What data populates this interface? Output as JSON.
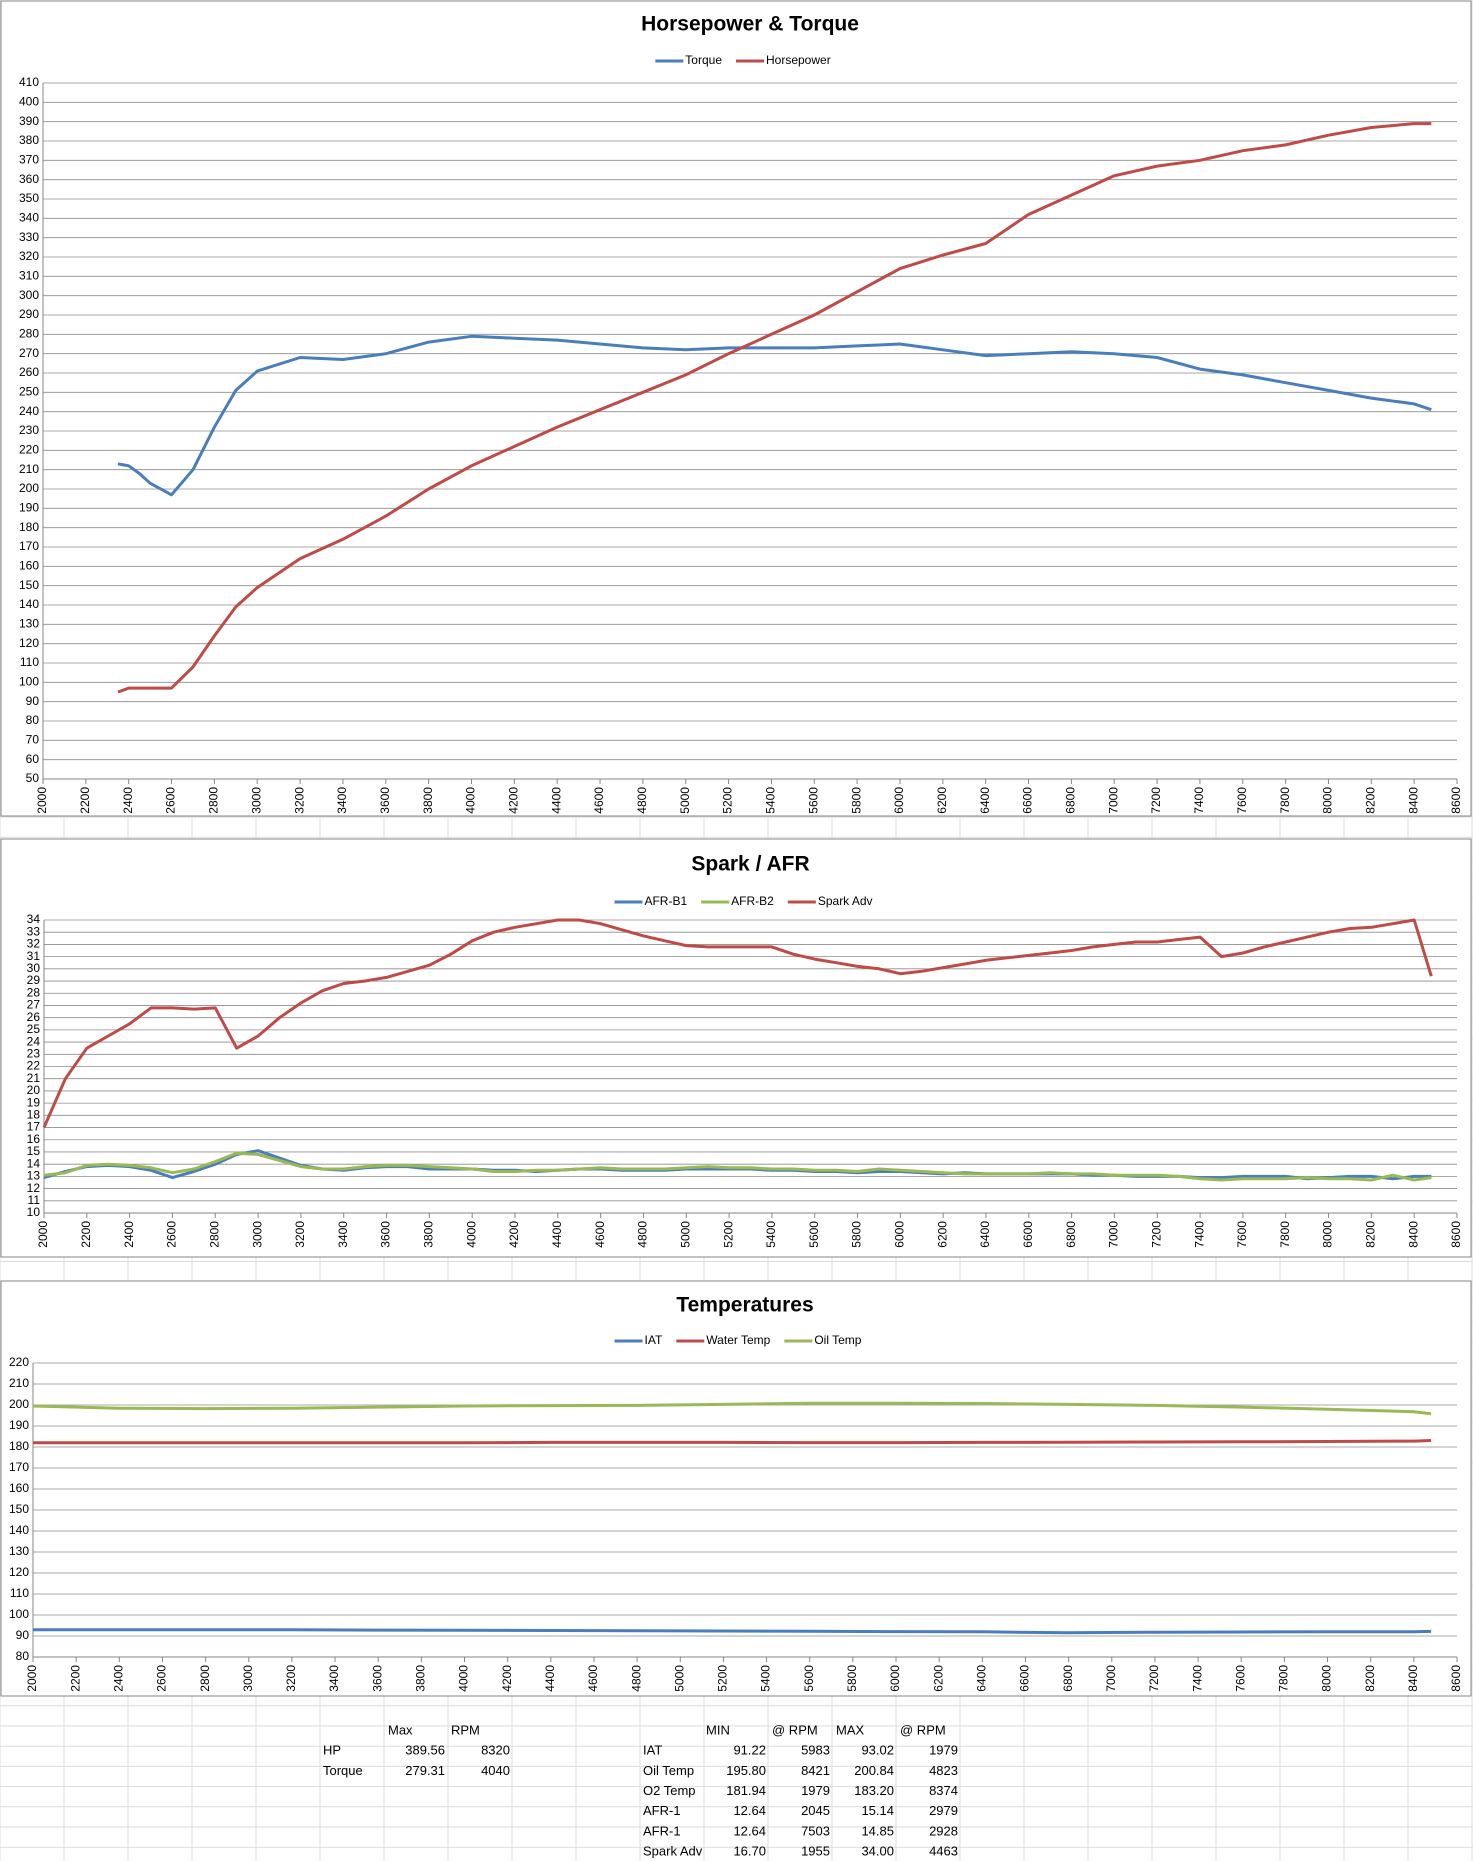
{
  "chart_data": [
    {
      "type": "line",
      "title": "Horsepower & Torque",
      "x": [
        2350,
        2400,
        2450,
        2500,
        2600,
        2700,
        2800,
        2900,
        3000,
        3200,
        3400,
        3600,
        3800,
        4000,
        4200,
        4400,
        4600,
        4800,
        5000,
        5200,
        5400,
        5600,
        5800,
        6000,
        6200,
        6400,
        6600,
        6800,
        7000,
        7200,
        7400,
        7600,
        7800,
        8000,
        8200,
        8400,
        8480
      ],
      "series": [
        {
          "name": "Torque",
          "color": "#4a7ebb",
          "values": [
            213,
            212,
            208,
            203,
            197,
            210,
            232,
            251,
            261,
            268,
            267,
            270,
            276,
            279,
            278,
            277,
            275,
            273,
            272,
            273,
            273,
            273,
            274,
            275,
            272,
            269,
            270,
            271,
            270,
            268,
            262,
            259,
            255,
            251,
            247,
            244,
            241
          ]
        },
        {
          "name": "Horsepower",
          "color": "#be4b48",
          "values": [
            95,
            97,
            97,
            97,
            97,
            108,
            124,
            139,
            149,
            164,
            174,
            186,
            200,
            212,
            222,
            232,
            241,
            250,
            259,
            270,
            280,
            290,
            302,
            314,
            321,
            327,
            342,
            352,
            362,
            367,
            370,
            375,
            378,
            383,
            387,
            389,
            389
          ]
        }
      ],
      "xlim": [
        2000,
        8600
      ],
      "xticks": [
        2000,
        2200,
        2400,
        2600,
        2800,
        3000,
        3200,
        3400,
        3600,
        3800,
        4000,
        4200,
        4400,
        4600,
        4800,
        5000,
        5200,
        5400,
        5600,
        5800,
        6000,
        6200,
        6400,
        6600,
        6800,
        7000,
        7200,
        7400,
        7600,
        7800,
        8000,
        8200,
        8400,
        8600
      ],
      "ylim": [
        50,
        410
      ],
      "yticks": [
        50,
        60,
        70,
        80,
        90,
        100,
        110,
        120,
        130,
        140,
        150,
        160,
        170,
        180,
        190,
        200,
        210,
        220,
        230,
        240,
        250,
        260,
        270,
        280,
        290,
        300,
        310,
        320,
        330,
        340,
        350,
        360,
        370,
        380,
        390,
        400,
        410
      ],
      "grid": true,
      "legend": "top"
    },
    {
      "type": "line",
      "title": "Spark / AFR",
      "x": [
        2000,
        2100,
        2200,
        2300,
        2400,
        2500,
        2600,
        2700,
        2800,
        2900,
        3000,
        3100,
        3200,
        3300,
        3400,
        3500,
        3600,
        3700,
        3800,
        3900,
        4000,
        4100,
        4200,
        4300,
        4400,
        4500,
        4600,
        4700,
        4800,
        4900,
        5000,
        5100,
        5200,
        5300,
        5400,
        5500,
        5600,
        5700,
        5800,
        5900,
        6000,
        6100,
        6200,
        6300,
        6400,
        6500,
        6600,
        6700,
        6800,
        6900,
        7000,
        7100,
        7200,
        7300,
        7400,
        7500,
        7600,
        7700,
        7800,
        7900,
        8000,
        8100,
        8200,
        8300,
        8400,
        8480
      ],
      "series": [
        {
          "name": "AFR-B1",
          "color": "#4a7ebb",
          "values": [
            12.9,
            13.4,
            13.8,
            13.9,
            13.8,
            13.5,
            12.9,
            13.4,
            14,
            14.8,
            15.1,
            14.5,
            13.9,
            13.6,
            13.5,
            13.7,
            13.8,
            13.8,
            13.6,
            13.6,
            13.6,
            13.5,
            13.5,
            13.4,
            13.5,
            13.6,
            13.6,
            13.5,
            13.5,
            13.5,
            13.6,
            13.6,
            13.6,
            13.6,
            13.5,
            13.5,
            13.4,
            13.4,
            13.3,
            13.4,
            13.4,
            13.3,
            13.2,
            13.3,
            13.2,
            13.2,
            13.2,
            13.2,
            13.2,
            13.1,
            13.1,
            13,
            13,
            13,
            12.9,
            12.9,
            13,
            13,
            13,
            12.8,
            12.9,
            13,
            13,
            12.8,
            13,
            13
          ]
        },
        {
          "name": "AFR-B2",
          "color": "#98b954",
          "values": [
            13.1,
            13.3,
            13.9,
            14,
            13.9,
            13.7,
            13.3,
            13.6,
            14.2,
            14.9,
            14.8,
            14.3,
            13.8,
            13.6,
            13.6,
            13.8,
            13.9,
            13.9,
            13.8,
            13.7,
            13.6,
            13.4,
            13.4,
            13.5,
            13.5,
            13.6,
            13.7,
            13.6,
            13.6,
            13.6,
            13.7,
            13.8,
            13.7,
            13.7,
            13.6,
            13.6,
            13.5,
            13.5,
            13.4,
            13.6,
            13.5,
            13.4,
            13.3,
            13.2,
            13.2,
            13.2,
            13.2,
            13.3,
            13.2,
            13.2,
            13.1,
            13.1,
            13.1,
            13,
            12.8,
            12.7,
            12.8,
            12.8,
            12.8,
            12.9,
            12.8,
            12.8,
            12.7,
            13.1,
            12.7,
            12.9
          ]
        },
        {
          "name": "Spark Adv",
          "color": "#be4b48",
          "values": [
            17,
            21,
            23.5,
            24.5,
            25.5,
            26.8,
            26.8,
            26.7,
            26.8,
            23.5,
            24.5,
            26,
            27.2,
            28.2,
            28.8,
            29,
            29.3,
            29.8,
            30.3,
            31.2,
            32.3,
            33,
            33.4,
            33.7,
            34,
            34,
            33.7,
            33.2,
            32.7,
            32.3,
            31.9,
            31.8,
            31.8,
            31.8,
            31.8,
            31.2,
            30.8,
            30.5,
            30.2,
            30,
            29.6,
            29.8,
            30.1,
            30.4,
            30.7,
            30.9,
            31.1,
            31.3,
            31.5,
            31.8,
            32,
            32.2,
            32.2,
            32.4,
            32.6,
            31,
            31.3,
            31.8,
            32.2,
            32.6,
            33,
            33.3,
            33.4,
            33.7,
            34,
            29.4
          ]
        }
      ],
      "xlim": [
        2000,
        8600
      ],
      "xticks": [
        2000,
        2200,
        2400,
        2600,
        2800,
        3000,
        3200,
        3400,
        3600,
        3800,
        4000,
        4200,
        4400,
        4600,
        4800,
        5000,
        5200,
        5400,
        5600,
        5800,
        6000,
        6200,
        6400,
        6600,
        6800,
        7000,
        7200,
        7400,
        7600,
        7800,
        8000,
        8200,
        8400,
        8600
      ],
      "ylim": [
        10,
        34
      ],
      "yticks": [
        10,
        11,
        12,
        13,
        14,
        15,
        16,
        17,
        18,
        19,
        20,
        21,
        22,
        23,
        24,
        25,
        26,
        27,
        28,
        29,
        30,
        31,
        32,
        33,
        34
      ],
      "grid": true,
      "legend": "top"
    },
    {
      "type": "line",
      "title": "Temperatures",
      "x": [
        2000,
        2400,
        2800,
        3200,
        3600,
        4000,
        4400,
        4800,
        5200,
        5600,
        6000,
        6400,
        6800,
        7200,
        7600,
        8000,
        8400,
        8480
      ],
      "series": [
        {
          "name": "IAT",
          "color": "#4a7ebb",
          "values": [
            93,
            93,
            93,
            93,
            92.8,
            92.7,
            92.6,
            92.5,
            92.4,
            92.3,
            92.1,
            92,
            91.5,
            91.8,
            91.9,
            92,
            92,
            92.2
          ]
        },
        {
          "name": "Water Temp",
          "color": "#be4b48",
          "values": [
            182,
            182,
            182,
            182,
            182,
            182,
            182.2,
            182.2,
            182.2,
            182.1,
            182.1,
            182.2,
            182.3,
            182.4,
            182.5,
            182.6,
            182.8,
            183.1
          ]
        },
        {
          "name": "Oil Temp",
          "color": "#98b954",
          "values": [
            199.5,
            198.5,
            198.3,
            198.5,
            199,
            199.5,
            199.7,
            199.8,
            200.3,
            200.8,
            200.8,
            200.7,
            200.3,
            199.8,
            199,
            198,
            196.8,
            195.8
          ]
        }
      ],
      "xlim": [
        2000,
        8600
      ],
      "xticks": [
        2000,
        2200,
        2400,
        2600,
        2800,
        3000,
        3200,
        3400,
        3600,
        3800,
        4000,
        4200,
        4400,
        4600,
        4800,
        5000,
        5200,
        5400,
        5600,
        5800,
        6000,
        6200,
        6400,
        6600,
        6800,
        7000,
        7200,
        7400,
        7600,
        7800,
        8000,
        8200,
        8400,
        8600
      ],
      "ylim": [
        80,
        220
      ],
      "yticks": [
        80,
        90,
        100,
        110,
        120,
        130,
        140,
        150,
        160,
        170,
        180,
        190,
        200,
        210,
        220
      ],
      "grid": true,
      "legend": "top"
    }
  ],
  "table_left": {
    "header": [
      "Max",
      "RPM"
    ],
    "rows": [
      [
        "HP",
        "389.56",
        "8320"
      ],
      [
        "Torque",
        "279.31",
        "4040"
      ]
    ]
  },
  "table_right": {
    "header": [
      "MIN",
      "@ RPM",
      "MAX",
      "@ RPM"
    ],
    "rows": [
      [
        "IAT",
        "91.22",
        "5983",
        "93.02",
        "1979"
      ],
      [
        "Oil Temp",
        "195.80",
        "8421",
        "200.84",
        "4823"
      ],
      [
        "O2 Temp",
        "181.94",
        "1979",
        "183.20",
        "8374"
      ],
      [
        "AFR-1",
        "12.64",
        "2045",
        "15.14",
        "2979"
      ],
      [
        "AFR-1",
        "12.64",
        "7503",
        "14.85",
        "2928"
      ],
      [
        "Spark Adv",
        "16.70",
        "1955",
        "34.00",
        "4463"
      ]
    ]
  }
}
